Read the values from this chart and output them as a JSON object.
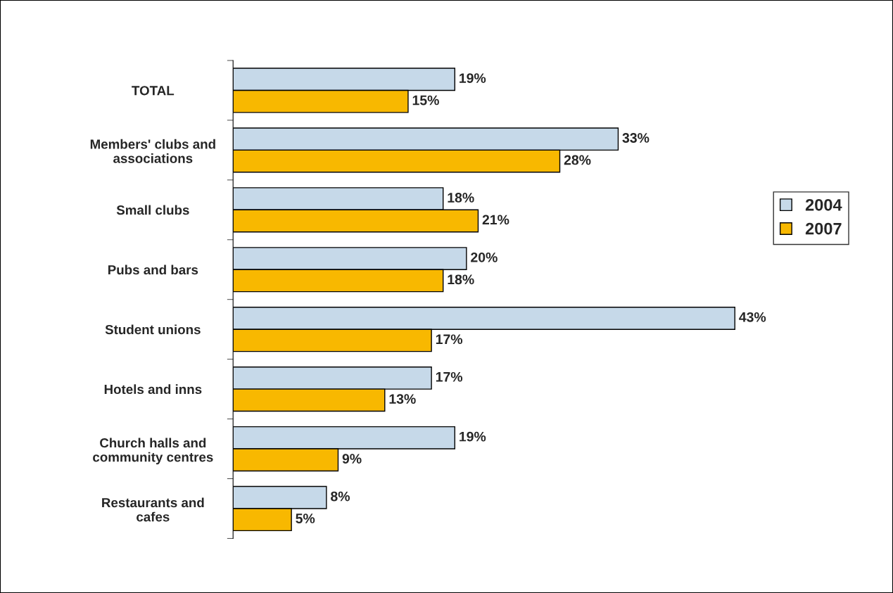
{
  "chart_data": {
    "type": "bar",
    "orientation": "horizontal",
    "categories": [
      "TOTAL",
      "Members' clubs and\nassociations",
      "Small clubs",
      "Pubs and bars",
      "Student unions",
      "Hotels and inns",
      "Church halls and\ncommunity centres",
      "Restaurants and\ncafes"
    ],
    "series": [
      {
        "name": "2004",
        "color": "#c6d9e9",
        "values": [
          19,
          33,
          18,
          20,
          43,
          17,
          19,
          8
        ],
        "value_labels": [
          "19%",
          "33%",
          "18%",
          "20%",
          "43%",
          "17%",
          "19%",
          "8%"
        ]
      },
      {
        "name": "2007",
        "color": "#f8b800",
        "values": [
          15,
          28,
          21,
          18,
          17,
          13,
          9,
          5
        ],
        "value_labels": [
          "15%",
          "28%",
          "21%",
          "18%",
          "17%",
          "13%",
          "9%",
          "5%"
        ]
      }
    ],
    "legend": "right",
    "grid": false,
    "tick_labels": "y"
  }
}
